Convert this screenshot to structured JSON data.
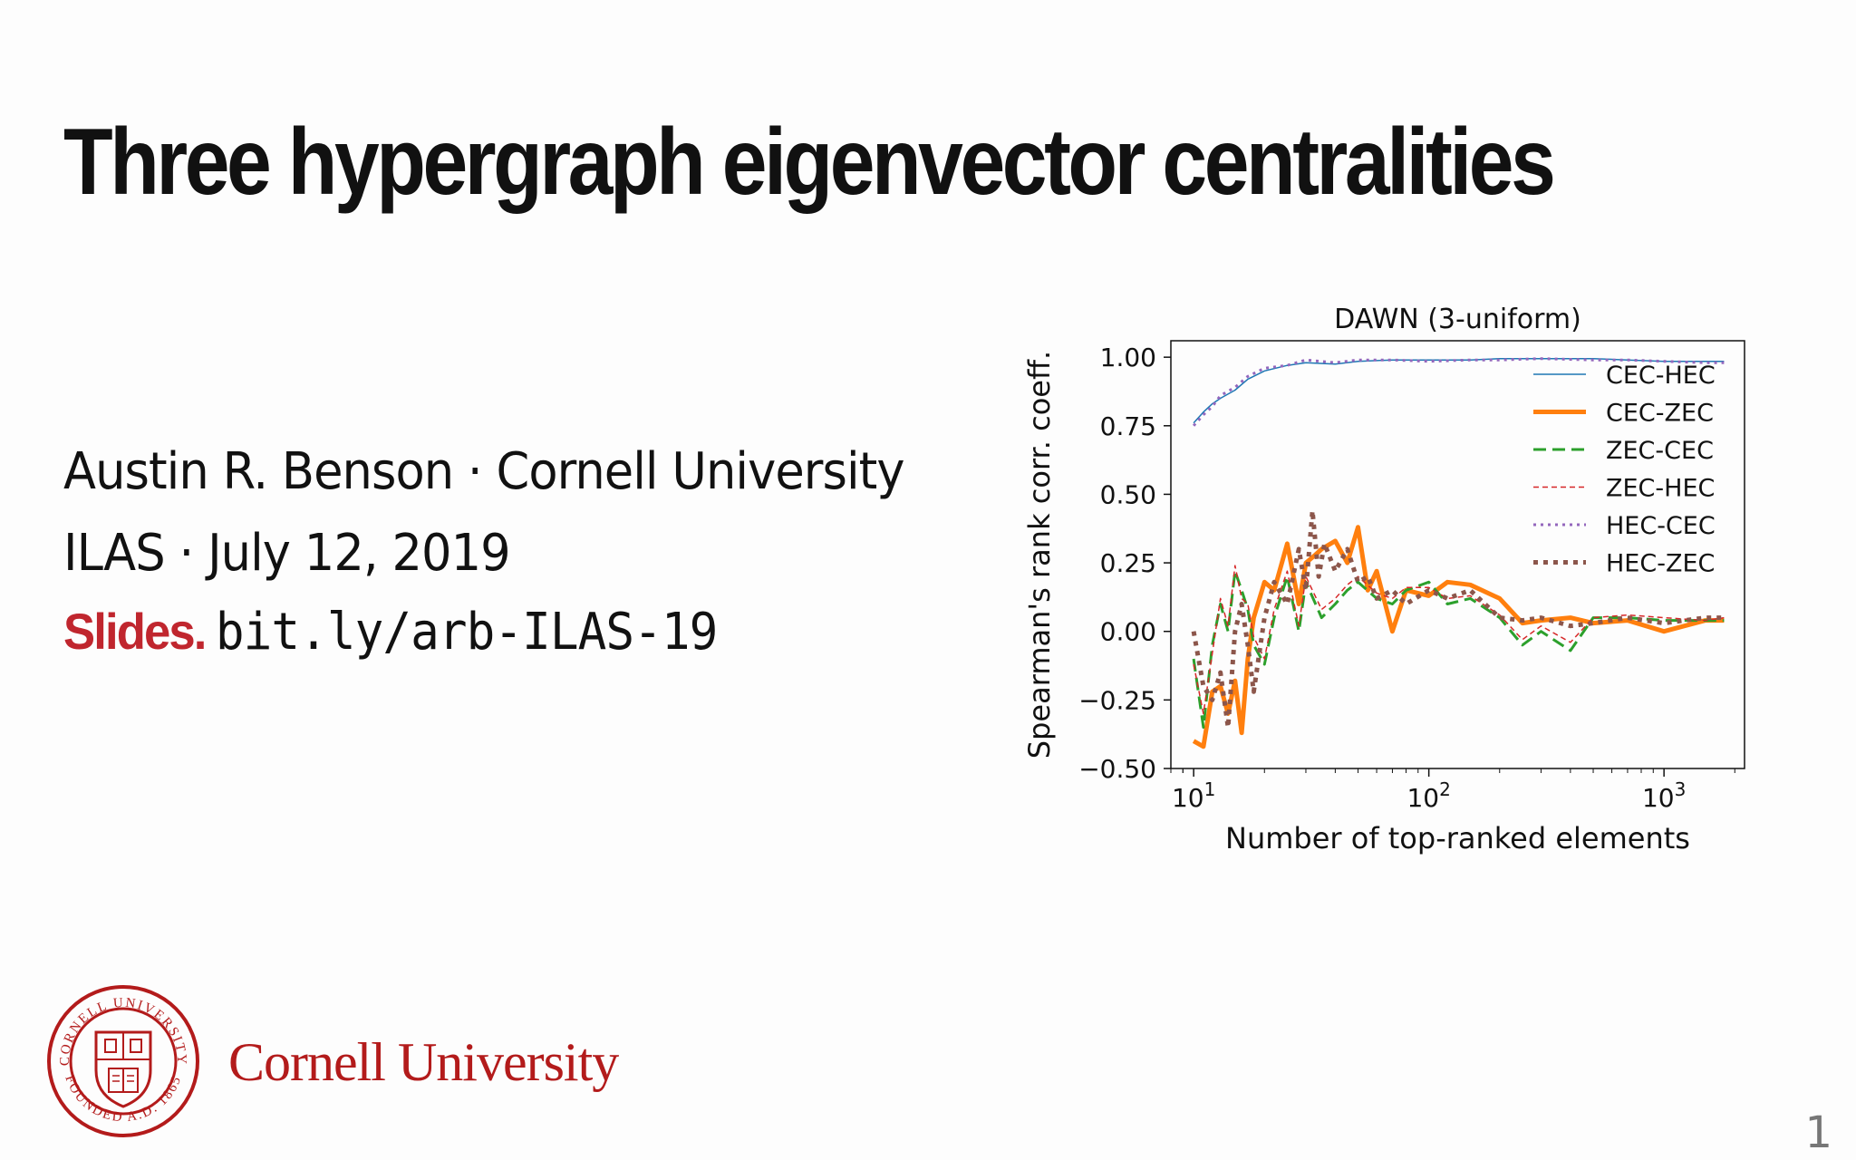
{
  "slide": {
    "title": "Three hypergraph eigenvector centralities",
    "author_line": "Austin R. Benson · Cornell University",
    "event_line": "ILAS · July 12, 2019",
    "slides_label": "Slides.",
    "slides_url": "bit.ly/arb-ILAS-19",
    "page_number": "1"
  },
  "logo": {
    "wordmark": "Cornell University",
    "seal_text_top": "CORNELL UNIVERSITY",
    "seal_text_bottom": "FOUNDED A.D. 1865"
  },
  "colors": {
    "title": "#111111",
    "slides_label": "#c0262e",
    "cornell_red": "#b31b1b"
  },
  "chart_data": {
    "type": "line",
    "title": "DAWN (3-uniform)",
    "xlabel": "Number of top-ranked elements",
    "ylabel": "Spearman's rank corr. coeff.",
    "xscale": "log",
    "xlim": [
      8,
      2200
    ],
    "ylim": [
      -0.5,
      1.06
    ],
    "xticks": [
      10,
      100,
      1000
    ],
    "xtick_labels": [
      "10^1",
      "10^2",
      "10^3"
    ],
    "yticks": [
      -0.5,
      -0.25,
      0.0,
      0.25,
      0.5,
      0.75,
      1.0
    ],
    "ytick_labels": [
      "−0.50",
      "−0.25",
      "0.00",
      "0.25",
      "0.50",
      "0.75",
      "1.00"
    ],
    "legend_position": "upper right",
    "grid": false,
    "series": [
      {
        "name": "CEC-HEC",
        "color": "#1f77b4",
        "style": "solid",
        "width": 1.5,
        "x": [
          10,
          11,
          12,
          13,
          15,
          17,
          20,
          25,
          30,
          40,
          50,
          70,
          100,
          150,
          200,
          300,
          500,
          700,
          1000,
          1500,
          1800
        ],
        "y": [
          0.76,
          0.8,
          0.83,
          0.85,
          0.88,
          0.92,
          0.95,
          0.97,
          0.98,
          0.975,
          0.985,
          0.99,
          0.99,
          0.99,
          0.995,
          0.995,
          0.995,
          0.99,
          0.985,
          0.985,
          0.985
        ]
      },
      {
        "name": "CEC-ZEC",
        "color": "#ff7f0e",
        "style": "solid",
        "width": 5,
        "x": [
          10,
          11,
          12,
          13,
          14,
          15,
          16,
          17,
          18,
          20,
          22,
          25,
          28,
          30,
          33,
          35,
          40,
          45,
          50,
          55,
          60,
          70,
          80,
          100,
          120,
          150,
          200,
          250,
          300,
          400,
          500,
          700,
          1000,
          1500,
          1800
        ],
        "y": [
          -0.4,
          -0.42,
          -0.22,
          -0.2,
          -0.3,
          -0.18,
          -0.37,
          -0.1,
          0.05,
          0.18,
          0.15,
          0.32,
          0.1,
          0.25,
          0.28,
          0.3,
          0.33,
          0.25,
          0.38,
          0.15,
          0.22,
          0.0,
          0.15,
          0.13,
          0.18,
          0.17,
          0.12,
          0.03,
          0.04,
          0.05,
          0.03,
          0.04,
          0.0,
          0.04,
          0.04
        ]
      },
      {
        "name": "ZEC-CEC",
        "color": "#2ca02c",
        "style": "dashed",
        "width": 3,
        "x": [
          10,
          11,
          12,
          13,
          14,
          15,
          16,
          17,
          18,
          20,
          22,
          25,
          28,
          30,
          35,
          40,
          45,
          50,
          60,
          70,
          80,
          100,
          120,
          150,
          200,
          250,
          300,
          400,
          500,
          700,
          1000,
          1500,
          1800
        ],
        "y": [
          -0.1,
          -0.35,
          -0.05,
          0.1,
          0.0,
          0.22,
          0.15,
          0.08,
          -0.05,
          -0.12,
          0.05,
          0.2,
          0.0,
          0.18,
          0.05,
          0.1,
          0.15,
          0.18,
          0.12,
          0.1,
          0.15,
          0.18,
          0.1,
          0.12,
          0.05,
          -0.05,
          0.0,
          -0.07,
          0.05,
          0.05,
          0.04,
          0.04,
          0.04
        ]
      },
      {
        "name": "ZEC-HEC",
        "color": "#d62728",
        "style": "dashed-thin",
        "width": 1.5,
        "x": [
          10,
          11,
          12,
          13,
          14,
          15,
          16,
          17,
          18,
          20,
          22,
          25,
          28,
          30,
          35,
          40,
          45,
          50,
          60,
          70,
          80,
          100,
          120,
          150,
          200,
          250,
          300,
          400,
          500,
          700,
          1000,
          1500,
          1800
        ],
        "y": [
          -0.12,
          -0.3,
          -0.08,
          0.12,
          0.02,
          0.24,
          0.12,
          0.1,
          -0.02,
          -0.1,
          0.08,
          0.22,
          0.02,
          0.2,
          0.08,
          0.12,
          0.17,
          0.2,
          0.14,
          0.12,
          0.16,
          0.16,
          0.12,
          0.13,
          0.06,
          -0.03,
          0.02,
          -0.04,
          0.05,
          0.06,
          0.05,
          0.04,
          0.05
        ]
      },
      {
        "name": "HEC-CEC",
        "color": "#9467bd",
        "style": "dotted",
        "width": 3,
        "x": [
          10,
          11,
          12,
          13,
          15,
          17,
          20,
          25,
          30,
          40,
          50,
          70,
          100,
          150,
          200,
          300,
          500,
          700,
          1000,
          1500,
          1800
        ],
        "y": [
          0.75,
          0.79,
          0.82,
          0.86,
          0.89,
          0.93,
          0.96,
          0.97,
          0.99,
          0.98,
          0.99,
          0.99,
          0.985,
          0.99,
          0.99,
          0.995,
          0.99,
          0.99,
          0.985,
          0.98,
          0.98
        ]
      },
      {
        "name": "HEC-ZEC",
        "color": "#8c564b",
        "style": "dotted-thick",
        "width": 5,
        "x": [
          10,
          11,
          12,
          13,
          14,
          15,
          16,
          17,
          18,
          20,
          22,
          25,
          28,
          30,
          32,
          34,
          36,
          40,
          45,
          50,
          55,
          60,
          70,
          80,
          100,
          120,
          150,
          200,
          250,
          300,
          400,
          500,
          700,
          1000,
          1500,
          1800
        ],
        "y": [
          0.0,
          -0.2,
          -0.25,
          -0.15,
          -0.35,
          0.0,
          0.1,
          -0.05,
          -0.22,
          0.05,
          0.18,
          0.1,
          0.3,
          0.15,
          0.44,
          0.2,
          0.32,
          0.22,
          0.3,
          0.18,
          0.2,
          0.12,
          0.15,
          0.1,
          0.15,
          0.12,
          0.15,
          0.05,
          0.04,
          0.05,
          0.02,
          0.03,
          0.05,
          0.03,
          0.05,
          0.05
        ]
      }
    ]
  }
}
